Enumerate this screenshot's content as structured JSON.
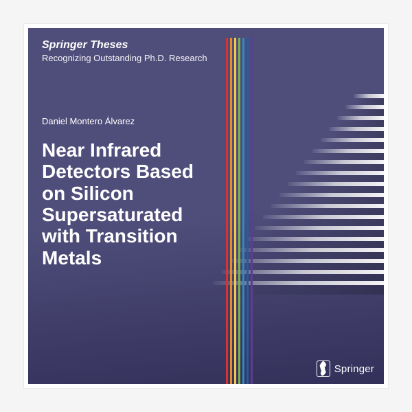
{
  "series": {
    "title": "Springer Theses",
    "subtitle": "Recognizing Outstanding Ph.D. Research"
  },
  "author": "Daniel Montero Álvarez",
  "title": "Near Infrared Detectors Based on Silicon Supersaturated with Transition Metals",
  "publisher": "Springer",
  "colors": {
    "bg_top": "#4f4d7a",
    "bg_bottom": "#33315a",
    "stripes": [
      "#d9322f",
      "#e88b2e",
      "#f2c84b",
      "#7fb04e",
      "#2e8bbf",
      "#2b5aa0",
      "#5a3f8f"
    ],
    "stripe_left": 288,
    "stripe_gap": 6
  },
  "steps": {
    "count": 18,
    "top_y": 96,
    "spacing": 16,
    "min_width": 44,
    "width_step": 12
  }
}
